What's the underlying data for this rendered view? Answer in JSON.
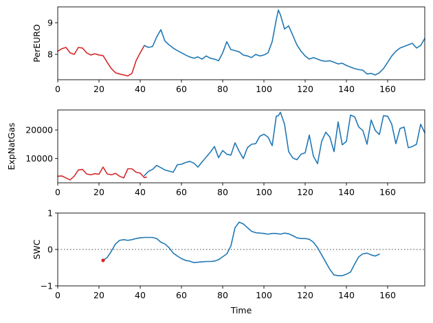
{
  "chart_data": [
    {
      "type": "line",
      "ylabel": "PerEURO",
      "xlabel": "",
      "xlim": [
        0,
        178
      ],
      "ylim": [
        7.2,
        9.5
      ],
      "xticks": [
        0,
        20,
        40,
        60,
        80,
        100,
        120,
        140,
        160
      ],
      "yticks": [
        8,
        9
      ],
      "series": [
        {
          "color": "#d62728",
          "x": [
            0,
            2,
            4,
            6,
            8,
            10,
            12,
            14,
            16,
            18,
            20,
            22,
            24,
            26,
            28,
            30,
            32,
            34,
            36,
            38,
            40,
            42,
            43
          ],
          "y": [
            8.1,
            8.18,
            8.22,
            8.05,
            8.0,
            8.22,
            8.2,
            8.05,
            7.98,
            8.02,
            7.98,
            7.96,
            7.75,
            7.55,
            7.42,
            7.38,
            7.35,
            7.32,
            7.4,
            7.8,
            8.05,
            8.28,
            8.25
          ]
        },
        {
          "color": "#1f77b4",
          "x": [
            42,
            44,
            46,
            48,
            50,
            52,
            54,
            56,
            58,
            60,
            62,
            64,
            66,
            68,
            70,
            72,
            74,
            76,
            78,
            80,
            82,
            84,
            86,
            88,
            90,
            92,
            94,
            96,
            98,
            100,
            102,
            104,
            106,
            107,
            108,
            110,
            112,
            114,
            116,
            118,
            120,
            122,
            124,
            126,
            128,
            130,
            132,
            134,
            136,
            138,
            140,
            142,
            144,
            146,
            148,
            150,
            152,
            154,
            156,
            158,
            160,
            162,
            164,
            166,
            168,
            170,
            172,
            174,
            176,
            178
          ],
          "y": [
            8.28,
            8.22,
            8.25,
            8.55,
            8.78,
            8.42,
            8.3,
            8.2,
            8.12,
            8.05,
            7.98,
            7.92,
            7.88,
            7.92,
            7.85,
            7.95,
            7.88,
            7.85,
            7.8,
            8.05,
            8.4,
            8.15,
            8.12,
            8.08,
            7.98,
            7.95,
            7.9,
            8.0,
            7.95,
            7.98,
            8.05,
            8.4,
            9.1,
            9.4,
            9.25,
            8.8,
            8.9,
            8.6,
            8.3,
            8.1,
            7.95,
            7.85,
            7.9,
            7.85,
            7.8,
            7.78,
            7.8,
            7.75,
            7.7,
            7.72,
            7.65,
            7.6,
            7.55,
            7.52,
            7.5,
            7.38,
            7.4,
            7.35,
            7.42,
            7.55,
            7.75,
            7.95,
            8.1,
            8.2,
            8.25,
            8.3,
            8.35,
            8.2,
            8.28,
            8.5
          ]
        }
      ]
    },
    {
      "type": "line",
      "ylabel": "ExpNatGas",
      "xlabel": "",
      "xlim": [
        0,
        178
      ],
      "ylim": [
        1500,
        27000
      ],
      "xticks": [
        0,
        20,
        40,
        60,
        80,
        100,
        120,
        140,
        160
      ],
      "yticks": [
        10000,
        20000
      ],
      "series": [
        {
          "color": "#d62728",
          "x": [
            0,
            2,
            4,
            6,
            8,
            10,
            12,
            14,
            16,
            18,
            20,
            22,
            24,
            26,
            28,
            30,
            32,
            34,
            36,
            38,
            40,
            42,
            43
          ],
          "y": [
            3800,
            3900,
            3200,
            2500,
            3800,
            6000,
            6200,
            4600,
            4300,
            4700,
            4500,
            7000,
            4600,
            4300,
            4800,
            3800,
            3200,
            6400,
            6400,
            5200,
            4900,
            3300,
            3500
          ]
        },
        {
          "color": "#1f77b4",
          "x": [
            42,
            44,
            46,
            48,
            50,
            52,
            54,
            56,
            58,
            60,
            62,
            64,
            66,
            68,
            70,
            72,
            74,
            76,
            78,
            80,
            82,
            84,
            86,
            88,
            90,
            92,
            94,
            96,
            98,
            100,
            102,
            104,
            106,
            107,
            108,
            110,
            112,
            114,
            116,
            118,
            120,
            122,
            124,
            126,
            128,
            130,
            132,
            134,
            136,
            138,
            140,
            142,
            144,
            146,
            148,
            150,
            152,
            154,
            156,
            158,
            160,
            162,
            164,
            166,
            168,
            170,
            172,
            174,
            176,
            178
          ],
          "y": [
            4000,
            5500,
            6200,
            7600,
            6800,
            6000,
            5600,
            5200,
            7800,
            8000,
            8600,
            9000,
            8400,
            7000,
            8800,
            10500,
            12200,
            14200,
            10300,
            12800,
            11500,
            11200,
            15500,
            12500,
            10000,
            13800,
            15000,
            15200,
            17800,
            18500,
            17500,
            14500,
            24800,
            25000,
            26200,
            22000,
            12400,
            10200,
            9600,
            11500,
            12000,
            18200,
            10800,
            8200,
            16000,
            19200,
            17500,
            12400,
            22800,
            14800,
            16000,
            25200,
            24600,
            21000,
            19800,
            15000,
            23500,
            19800,
            18400,
            25000,
            24800,
            22000,
            15200,
            20500,
            21000,
            13800,
            14200,
            15000,
            22000,
            19000
          ]
        }
      ]
    },
    {
      "type": "line",
      "ylabel": "SWC",
      "xlabel": "Time",
      "xlim": [
        0,
        178
      ],
      "ylim": [
        -1,
        1
      ],
      "xticks": [
        0,
        20,
        40,
        60,
        80,
        100,
        120,
        140,
        160
      ],
      "yticks": [
        -1,
        0,
        1
      ],
      "reference_line": {
        "y": 0,
        "style": "dotted",
        "color": "#7f7f7f"
      },
      "marker": {
        "x": 22,
        "y": -0.3,
        "color": "#d62728"
      },
      "series": [
        {
          "color": "#1f77b4",
          "x": [
            22,
            24,
            26,
            28,
            30,
            32,
            34,
            36,
            38,
            40,
            42,
            44,
            46,
            48,
            50,
            52,
            54,
            56,
            58,
            60,
            62,
            64,
            66,
            68,
            70,
            72,
            74,
            76,
            78,
            80,
            82,
            84,
            86,
            88,
            90,
            92,
            94,
            96,
            98,
            100,
            102,
            104,
            106,
            108,
            110,
            112,
            114,
            116,
            118,
            120,
            122,
            124,
            126,
            128,
            130,
            132,
            134,
            136,
            138,
            140,
            142,
            144,
            146,
            148,
            150,
            152,
            154,
            156
          ],
          "y": [
            -0.3,
            -0.22,
            -0.05,
            0.15,
            0.25,
            0.27,
            0.25,
            0.27,
            0.3,
            0.32,
            0.33,
            0.33,
            0.33,
            0.3,
            0.2,
            0.15,
            0.05,
            -0.1,
            -0.18,
            -0.25,
            -0.3,
            -0.32,
            -0.36,
            -0.35,
            -0.34,
            -0.33,
            -0.33,
            -0.32,
            -0.28,
            -0.2,
            -0.12,
            0.1,
            0.6,
            0.75,
            0.7,
            0.6,
            0.5,
            0.46,
            0.45,
            0.44,
            0.42,
            0.44,
            0.44,
            0.42,
            0.45,
            0.43,
            0.38,
            0.32,
            0.3,
            0.3,
            0.28,
            0.2,
            0.05,
            -0.15,
            -0.35,
            -0.55,
            -0.7,
            -0.72,
            -0.72,
            -0.68,
            -0.62,
            -0.4,
            -0.2,
            -0.12,
            -0.1,
            -0.15,
            -0.18,
            -0.13
          ]
        }
      ]
    }
  ]
}
